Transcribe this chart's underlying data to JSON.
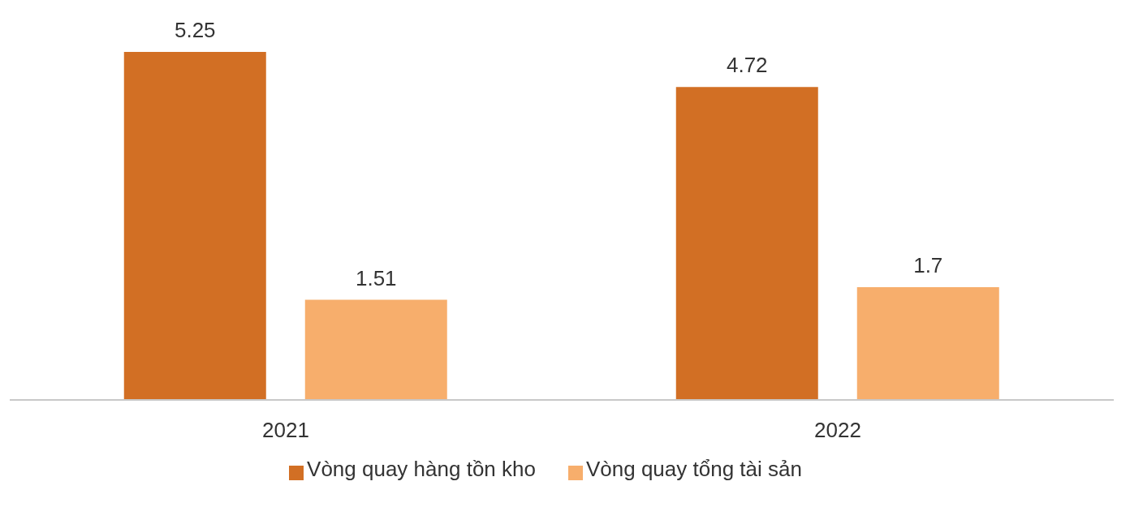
{
  "chart_data": {
    "type": "bar",
    "categories": [
      "2021",
      "2022"
    ],
    "series": [
      {
        "name": "Vòng quay hàng tồn kho",
        "color": "#d26f24",
        "values": [
          5.25,
          4.72
        ]
      },
      {
        "name": "Vòng quay tổng tài sản",
        "color": "#f7ae6c",
        "values": [
          1.51,
          1.7
        ]
      }
    ],
    "data_labels": true,
    "legend": "bottom",
    "grid": false
  }
}
